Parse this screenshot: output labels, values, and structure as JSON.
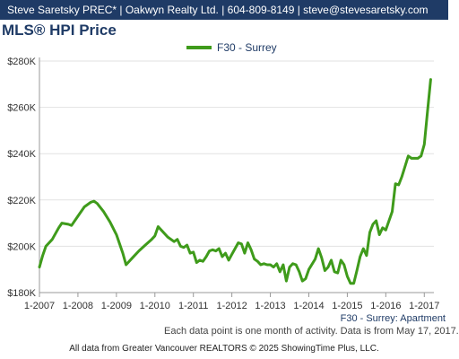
{
  "header": {
    "contact_line": "Steve Saretsky PREC* | Oakwyn Realty Ltd. | 604-809-8149 | steve@stevesaretsky.com"
  },
  "colors": {
    "header_bg": "#1f3b66",
    "title": "#1f3b66",
    "series_line": "#3f9b1b",
    "axis": "#999999",
    "grid": "#e2e2e2"
  },
  "chart_data": {
    "type": "line",
    "title": "MLS® HPI Price",
    "subtitle": "F30 - Surrey: Apartment",
    "xlabel": "",
    "ylabel": "",
    "x_ticks": [
      "1-2007",
      "1-2008",
      "1-2009",
      "1-2010",
      "1-2011",
      "1-2012",
      "1-2013",
      "1-2014",
      "1-2015",
      "1-2016",
      "1-2017"
    ],
    "y_ticks": [
      "$180K",
      "$200K",
      "$220K",
      "$240K",
      "$260K",
      "$280K"
    ],
    "ylim": [
      180000,
      280000
    ],
    "xlim": [
      "2007-01",
      "2017-04"
    ],
    "grid": true,
    "legend_position": "top-center",
    "series": [
      {
        "name": "F30 - Surrey",
        "points": [
          [
            "2007-01",
            191000
          ],
          [
            "2007-02",
            196000
          ],
          [
            "2007-03",
            200000
          ],
          [
            "2007-05",
            203000
          ],
          [
            "2007-07",
            208000
          ],
          [
            "2007-08",
            210000
          ],
          [
            "2007-10",
            209500
          ],
          [
            "2007-11",
            209000
          ],
          [
            "2008-01",
            213000
          ],
          [
            "2008-03",
            217000
          ],
          [
            "2008-05",
            219000
          ],
          [
            "2008-06",
            219500
          ],
          [
            "2008-07",
            218500
          ],
          [
            "2008-09",
            215000
          ],
          [
            "2008-11",
            210500
          ],
          [
            "2009-01",
            205000
          ],
          [
            "2009-03",
            197000
          ],
          [
            "2009-04",
            192000
          ],
          [
            "2009-06",
            195000
          ],
          [
            "2009-08",
            198000
          ],
          [
            "2009-10",
            200500
          ],
          [
            "2009-12",
            203000
          ],
          [
            "2010-01",
            204500
          ],
          [
            "2010-02",
            208500
          ],
          [
            "2010-03",
            207000
          ],
          [
            "2010-05",
            204000
          ],
          [
            "2010-07",
            202000
          ],
          [
            "2010-08",
            203000
          ],
          [
            "2010-09",
            200000
          ],
          [
            "2010-10",
            199500
          ],
          [
            "2010-11",
            200500
          ],
          [
            "2010-12",
            197000
          ],
          [
            "2011-01",
            197500
          ],
          [
            "2011-02",
            193000
          ],
          [
            "2011-03",
            194000
          ],
          [
            "2011-04",
            193500
          ],
          [
            "2011-05",
            195500
          ],
          [
            "2011-06",
            198000
          ],
          [
            "2011-07",
            198500
          ],
          [
            "2011-08",
            198000
          ],
          [
            "2011-09",
            199000
          ],
          [
            "2011-10",
            195500
          ],
          [
            "2011-11",
            197000
          ],
          [
            "2011-12",
            194000
          ],
          [
            "2012-01",
            196500
          ],
          [
            "2012-02",
            199000
          ],
          [
            "2012-03",
            201500
          ],
          [
            "2012-04",
            201000
          ],
          [
            "2012-05",
            197000
          ],
          [
            "2012-06",
            201500
          ],
          [
            "2012-07",
            198500
          ],
          [
            "2012-08",
            194500
          ],
          [
            "2012-09",
            193500
          ],
          [
            "2012-10",
            192000
          ],
          [
            "2012-11",
            192500
          ],
          [
            "2012-12",
            192000
          ],
          [
            "2013-01",
            192000
          ],
          [
            "2013-02",
            191000
          ],
          [
            "2013-03",
            192500
          ],
          [
            "2013-04",
            189000
          ],
          [
            "2013-05",
            192000
          ],
          [
            "2013-06",
            185000
          ],
          [
            "2013-07",
            191000
          ],
          [
            "2013-08",
            192500
          ],
          [
            "2013-09",
            192000
          ],
          [
            "2013-10",
            189000
          ],
          [
            "2013-11",
            185000
          ],
          [
            "2013-12",
            186000
          ],
          [
            "2014-01",
            190000
          ],
          [
            "2014-03",
            194500
          ],
          [
            "2014-04",
            199000
          ],
          [
            "2014-05",
            195000
          ],
          [
            "2014-06",
            189500
          ],
          [
            "2014-07",
            191000
          ],
          [
            "2014-08",
            194000
          ],
          [
            "2014-09",
            189000
          ],
          [
            "2014-10",
            188500
          ],
          [
            "2014-11",
            194000
          ],
          [
            "2014-12",
            192000
          ],
          [
            "2015-01",
            187000
          ],
          [
            "2015-02",
            184000
          ],
          [
            "2015-03",
            184000
          ],
          [
            "2015-04",
            189500
          ],
          [
            "2015-05",
            195500
          ],
          [
            "2015-06",
            199000
          ],
          [
            "2015-07",
            196000
          ],
          [
            "2015-08",
            206000
          ],
          [
            "2015-09",
            209500
          ],
          [
            "2015-10",
            211000
          ],
          [
            "2015-11",
            205000
          ],
          [
            "2015-12",
            208000
          ],
          [
            "2016-01",
            207000
          ],
          [
            "2016-02",
            211000
          ],
          [
            "2016-03",
            215000
          ],
          [
            "2016-04",
            227000
          ],
          [
            "2016-05",
            226500
          ],
          [
            "2016-06",
            230000
          ],
          [
            "2016-07",
            234500
          ],
          [
            "2016-08",
            239000
          ],
          [
            "2016-09",
            238000
          ],
          [
            "2016-10",
            238000
          ],
          [
            "2016-11",
            238000
          ],
          [
            "2016-12",
            239000
          ],
          [
            "2017-01",
            244000
          ],
          [
            "2017-02",
            258000
          ],
          [
            "2017-03",
            272000
          ]
        ]
      }
    ]
  },
  "notes": {
    "line1": "Each data point is one month of activity. Data is from May 17, 2017.",
    "footer": "All data from Greater Vancouver REALTORS © 2025 ShowingTime Plus, LLC."
  }
}
